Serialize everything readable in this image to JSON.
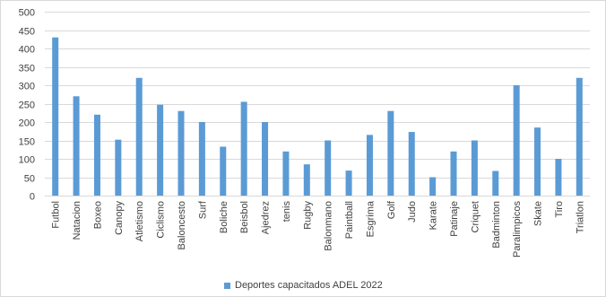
{
  "chart_data": {
    "type": "bar",
    "categories": [
      "Futbol",
      "Natacion",
      "Boxeo",
      "Canopy",
      "Atletismo",
      "Ciclismo",
      "Baloncesto",
      "Surf",
      "Boliche",
      "Beisbol",
      "Ajedrez",
      "tenis",
      "Rugby",
      "Balonmano",
      "Paintball",
      "Esgrima",
      "Golf",
      "Judo",
      "Karate",
      "Patinaje",
      "Criquet",
      "Badminton",
      "Paralimpicos",
      "Skate",
      "Tiro",
      "Triatlon"
    ],
    "series": [
      {
        "name": "Deportes capacitados ADEL 2022",
        "color": "#5b9bd5",
        "values": [
          430,
          270,
          220,
          152,
          320,
          247,
          230,
          200,
          133,
          255,
          200,
          120,
          85,
          150,
          68,
          165,
          230,
          173,
          50,
          120,
          150,
          67,
          300,
          185,
          100,
          320
        ]
      }
    ],
    "title": "",
    "xlabel": "",
    "ylabel": "",
    "ylim": [
      0,
      500
    ],
    "yticks": [
      "0",
      "50",
      "100",
      "150",
      "200",
      "250",
      "300",
      "350",
      "400",
      "450",
      "500"
    ],
    "grid": true,
    "grid_color": "#d9d9d9",
    "legend_position": "bottom"
  }
}
